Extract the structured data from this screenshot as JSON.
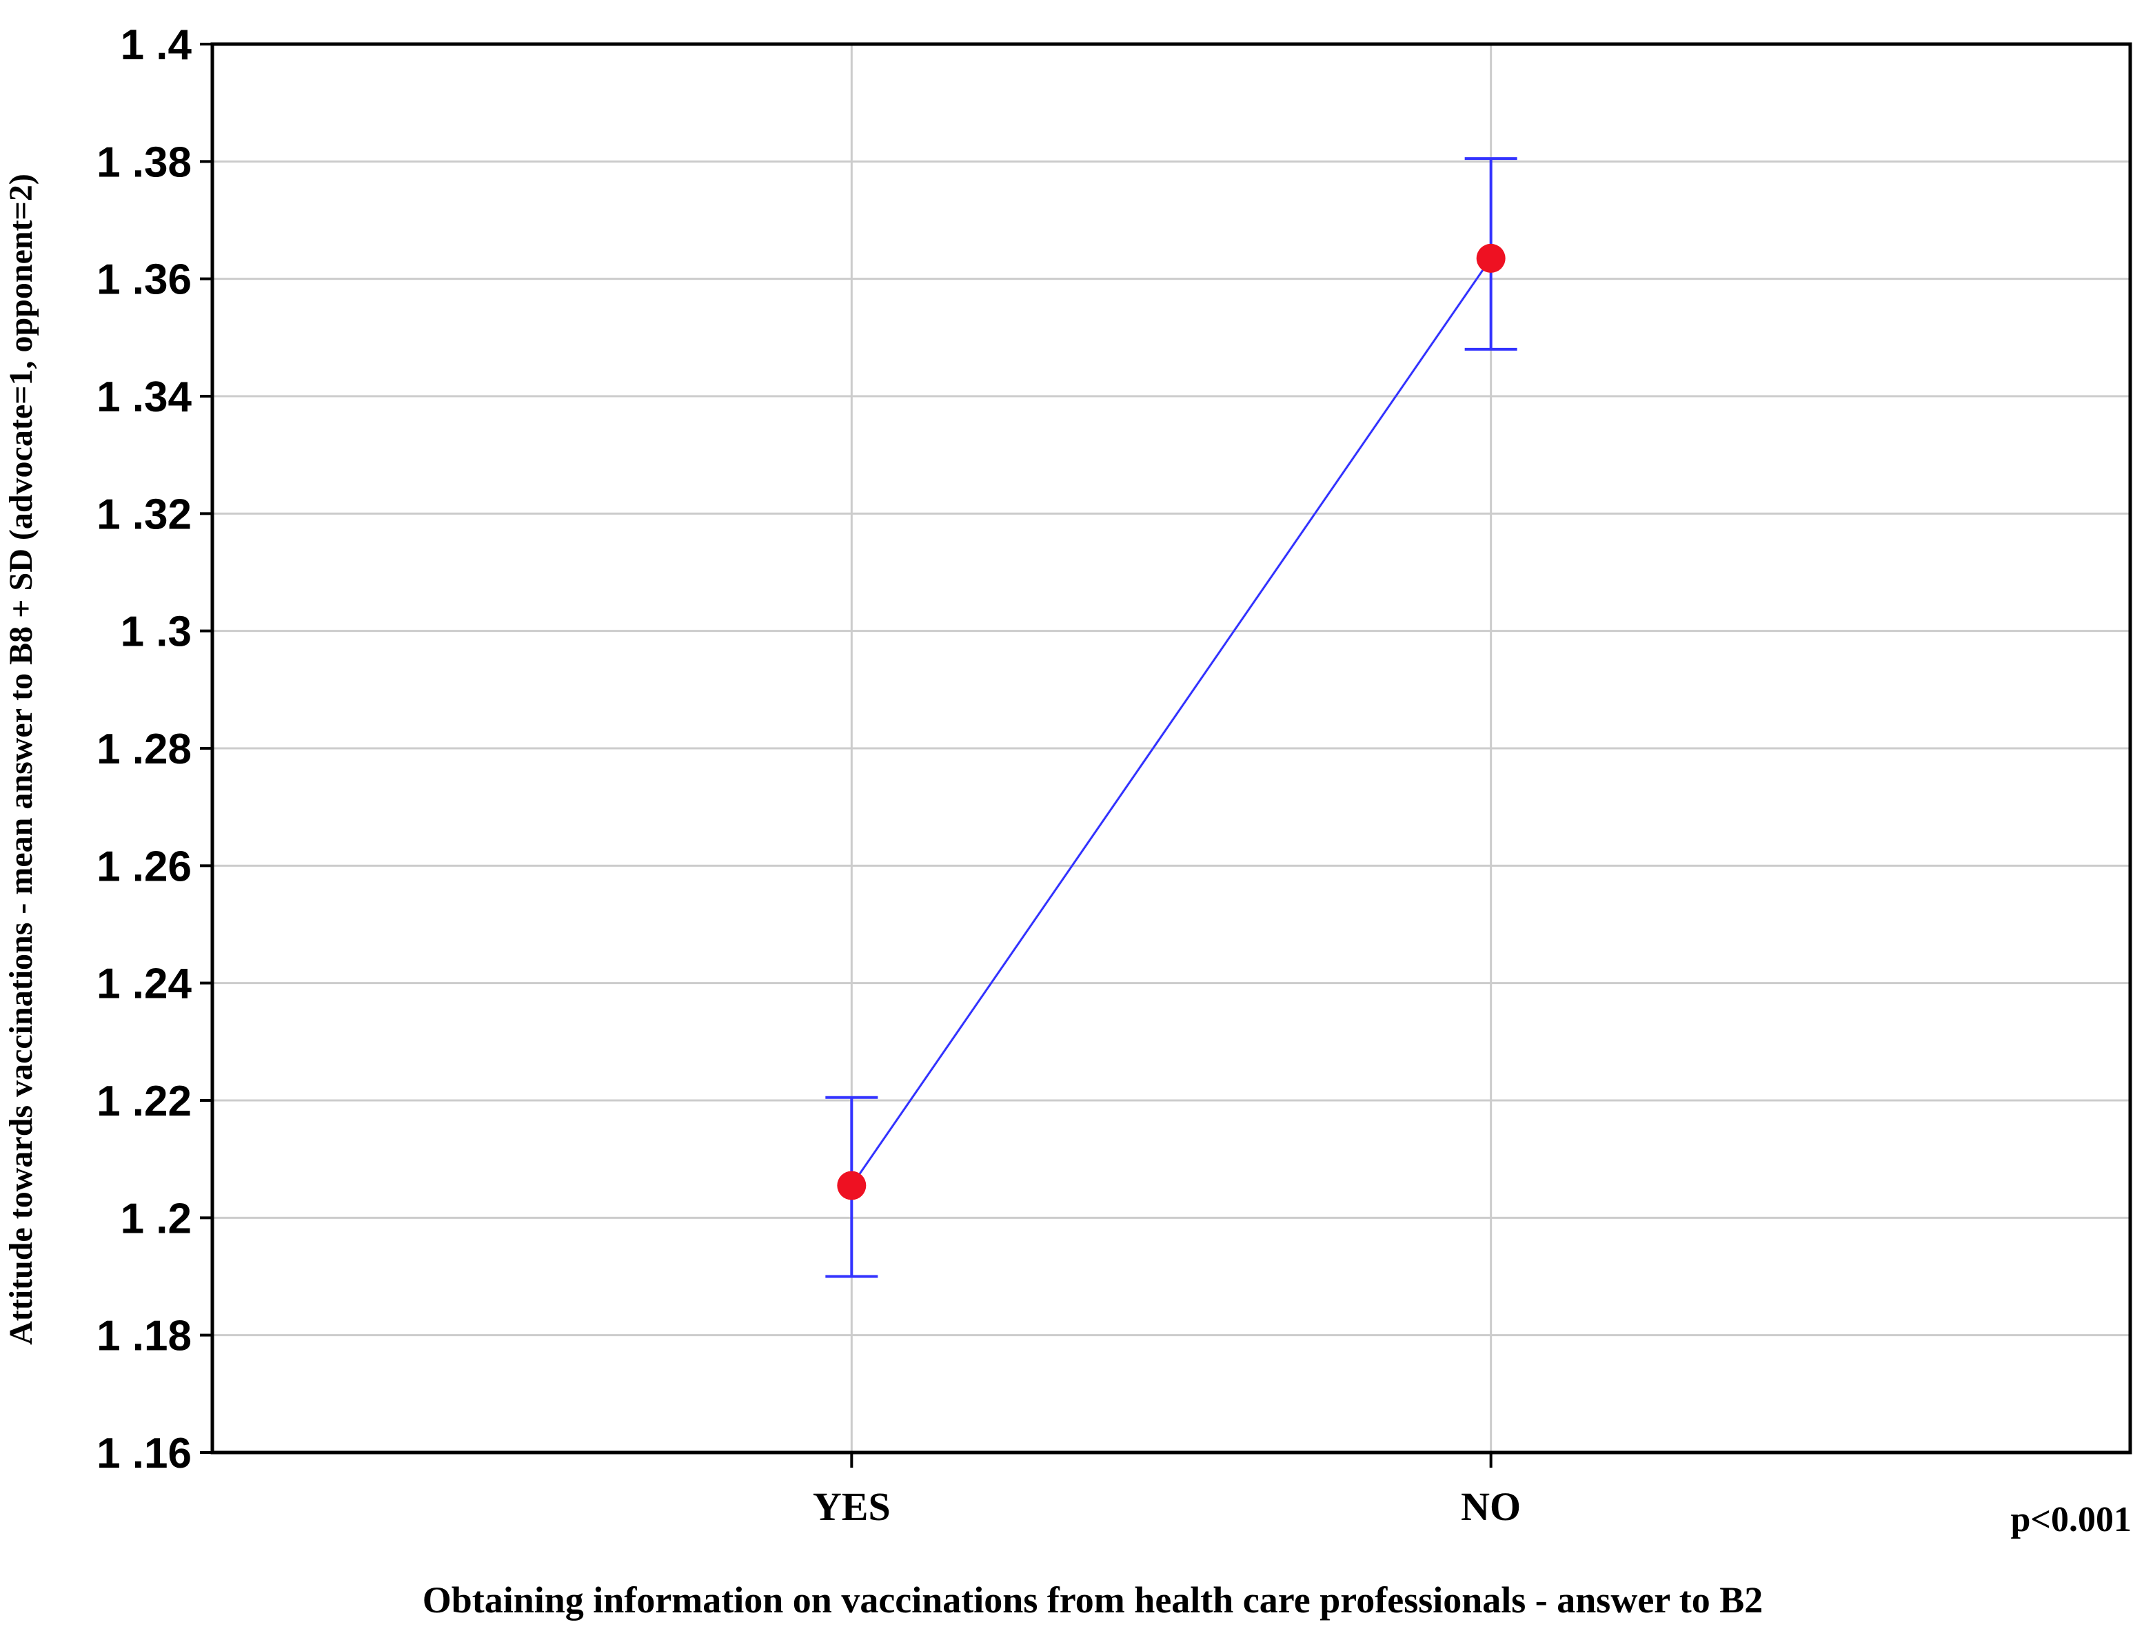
{
  "chart_data": {
    "type": "line",
    "categories": [
      "YES",
      "NO"
    ],
    "series": [
      {
        "values": [
          1.2055,
          1.3635
        ],
        "error_low": [
          1.19,
          1.348
        ],
        "error_high": [
          1.2205,
          1.3805
        ],
        "line_color": "#3333ff",
        "marker_color": "#ee1122"
      }
    ],
    "ylim": [
      1.16,
      1.4
    ],
    "yticks": [
      1.16,
      1.18,
      1.2,
      1.22,
      1.24,
      1.26,
      1.28,
      1.3,
      1.32,
      1.34,
      1.36,
      1.38,
      1.4
    ],
    "ytick_labels": [
      "1 .16",
      "1 .18",
      "1 .2",
      "1 .22",
      "1 .24",
      "1 .26",
      "1 .28",
      "1 .3",
      "1 .32",
      "1 .34",
      "1 .36",
      "1 .38",
      "1 .4"
    ],
    "xlabel": "Obtaining information on vaccinations from health care professionals - answer to B2",
    "ylabel": "Attitude towards vaccinations - mean answer to B8 + SD (advocate=1, opponent=2)",
    "annotation": "p<0.001",
    "grid": true,
    "grid_color": "#cccccc"
  }
}
